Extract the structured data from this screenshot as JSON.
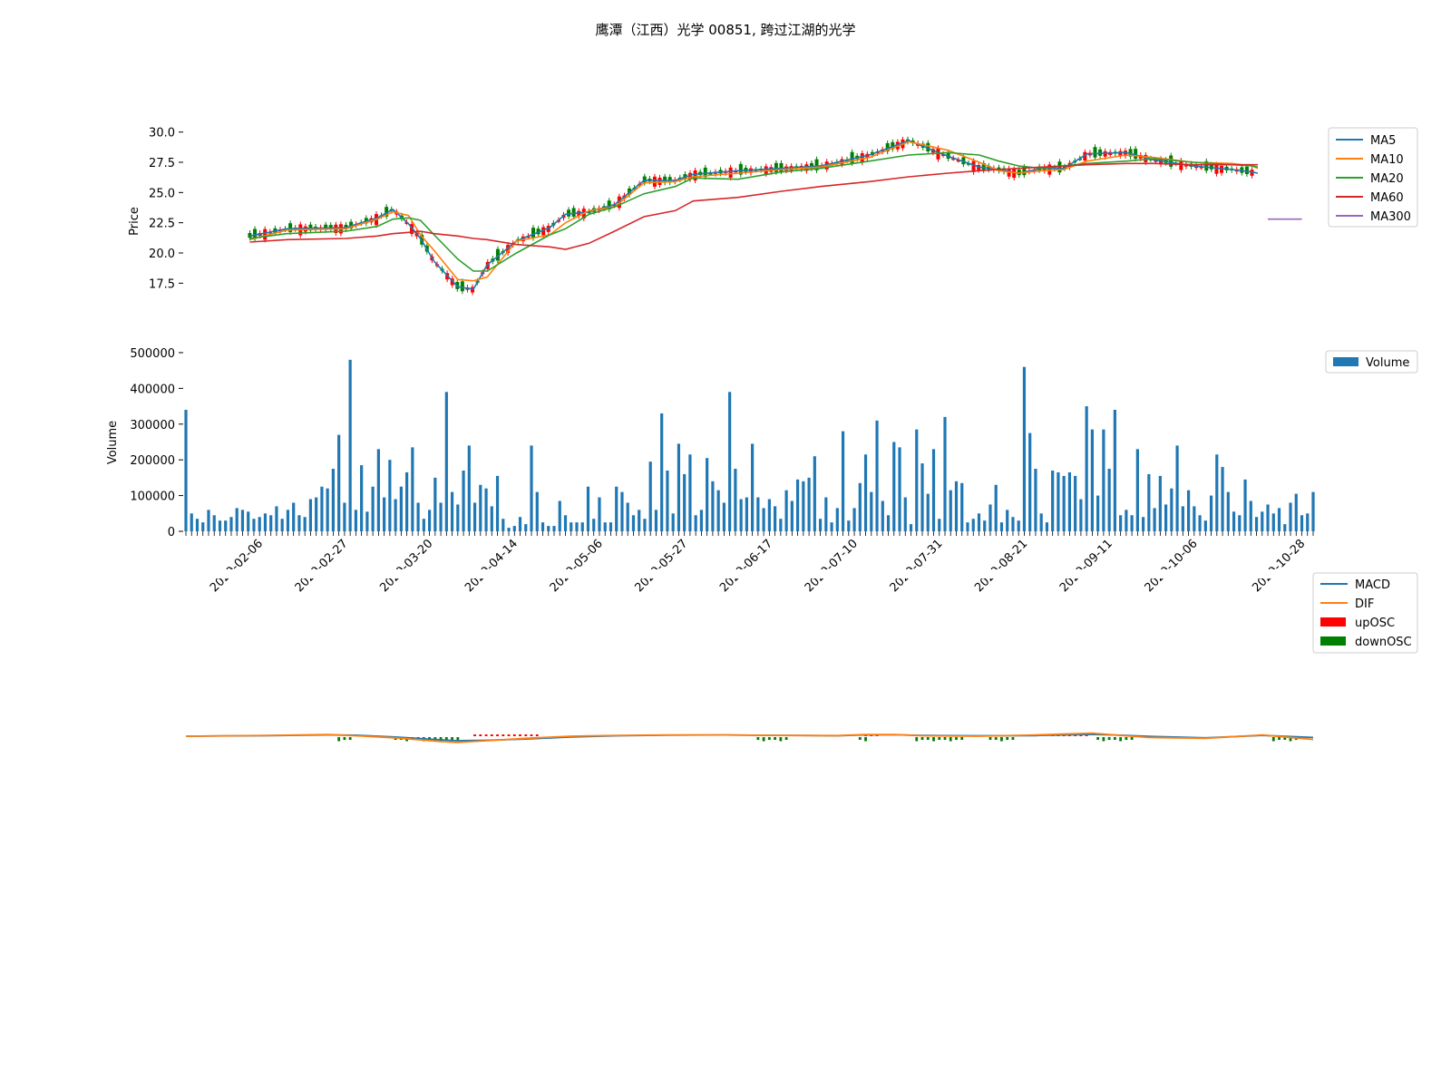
{
  "title": "鹰潭（江西）光学 00851, 跨过江湖的光学",
  "colors": {
    "MA5": "#1f77b4",
    "MA10": "#ff7f0e",
    "MA20": "#2ca02c",
    "MA60": "#d62728",
    "MA300": "#9467bd",
    "up": "#ff0000",
    "down": "#008000",
    "volume": "#1f77b4",
    "MACD": "#1f77b4",
    "DIF": "#ff7f0e"
  },
  "chart_data": [
    {
      "type": "line",
      "ylabel": "Price",
      "ylim": [
        15.5,
        30.5
      ],
      "yticks": [
        "17.5",
        "20.0",
        "22.5",
        "25.0",
        "27.5",
        "30.0"
      ],
      "legend": [
        "MA5",
        "MA10",
        "MA20",
        "MA60",
        "MA300"
      ],
      "legend_position": "top-right",
      "n_days": 199,
      "x": [
        9,
        28,
        58,
        74,
        82,
        90,
        96,
        103,
        115,
        123,
        130,
        145,
        162,
        170,
        182,
        195,
        210,
        226,
        235
      ],
      "series": [
        {
          "name": "MA5",
          "values": [
            21.4,
            22.0,
            22.1,
            22.9,
            23.6,
            22.4,
            21.2,
            19.3,
            17.2,
            17.0,
            19.0,
            21.0,
            22.1,
            23.2,
            23.4,
            24.0,
            26.0,
            26.0,
            26.5
          ]
        },
        {
          "name": "MA10",
          "values": [
            21.1,
            21.9,
            22.0,
            22.8,
            23.4,
            23.1,
            21.5,
            20.2,
            17.8,
            17.7,
            18.0,
            21.0,
            21.5,
            22.5,
            23.5,
            23.8,
            25.8,
            25.9,
            26.3
          ]
        },
        {
          "name": "MA20",
          "values": [
            21.2,
            21.6,
            21.8,
            22.2,
            22.8,
            22.9,
            22.7,
            21.5,
            19.5,
            18.5,
            18.5,
            20.0,
            21.5,
            22.0,
            23.2,
            23.8,
            24.9,
            25.5,
            26.2
          ]
        },
        {
          "name": "MA60",
          "values": [
            20.9,
            21.1,
            21.2,
            21.4,
            21.6,
            21.7,
            21.8,
            21.6,
            21.4,
            21.2,
            21.1,
            20.7,
            20.5,
            20.3,
            20.8,
            21.8,
            23.0,
            23.5,
            24.3
          ]
        }
      ],
      "continuation": {
        "x": [
          258,
          280,
          300,
          325,
          345,
          365,
          381,
          391,
          401,
          413,
          424,
          436,
          456,
          470,
          490,
          510,
          520,
          523
        ],
        "MA5": [
          26.8,
          27.0,
          27.2,
          28.1,
          29.3,
          28.0,
          27.1,
          26.9,
          26.6,
          27.0,
          27.0,
          28.2,
          28.3,
          27.7,
          27.2,
          26.9,
          26.7,
          26.6
        ],
        "MA10": [
          26.6,
          26.9,
          27.1,
          27.9,
          29.2,
          28.5,
          27.5,
          26.8,
          26.6,
          26.8,
          26.9,
          27.6,
          28.1,
          27.9,
          27.5,
          27.4,
          27.2,
          27.0
        ],
        "MA20": [
          26.1,
          26.7,
          27.0,
          27.6,
          28.1,
          28.3,
          28.1,
          27.6,
          27.2,
          27.0,
          27.2,
          27.4,
          27.6,
          27.8,
          27.5,
          27.3,
          27.2,
          27.1
        ],
        "MA60": [
          24.6,
          25.1,
          25.5,
          25.9,
          26.3,
          26.6,
          26.8,
          26.9,
          27.0,
          27.1,
          27.2,
          27.3,
          27.4,
          27.4,
          27.3,
          27.3,
          27.3,
          27.3
        ]
      },
      "ma300_segment": {
        "x": [
          191,
          197
        ],
        "value": 22.8
      }
    },
    {
      "type": "bar",
      "ylabel": "Volume",
      "ylim": [
        0,
        510000
      ],
      "yticks": [
        "0",
        "100000",
        "200000",
        "300000",
        "400000",
        "500000"
      ],
      "legend": [
        "Volume"
      ],
      "legend_position": "top-right",
      "xticklabels": [
        "2020-02-06",
        "2020-02-27",
        "2020-03-20",
        "2020-04-14",
        "2020-05-06",
        "2020-05-27",
        "2020-06-17",
        "2020-07-10",
        "2020-07-31",
        "2020-08-21",
        "2020-09-11",
        "2020-10-06",
        "2020-10-28"
      ],
      "xtick_index": [
        13,
        28,
        43,
        58,
        73,
        88,
        103,
        118,
        133,
        148,
        163,
        178,
        197
      ],
      "values": [
        340000,
        50000,
        35000,
        25000,
        60000,
        45000,
        30000,
        30000,
        40000,
        65000,
        60000,
        55000,
        35000,
        40000,
        50000,
        45000,
        70000,
        35000,
        60000,
        80000,
        45000,
        40000,
        90000,
        95000,
        125000,
        120000,
        175000,
        270000,
        80000,
        480000,
        60000,
        185000,
        55000,
        125000,
        230000,
        95000,
        200000,
        90000,
        125000,
        165000,
        235000,
        80000,
        35000,
        60000,
        150000,
        80000,
        390000,
        110000,
        75000,
        170000,
        240000,
        80000,
        130000,
        120000,
        70000,
        155000,
        35000,
        10000,
        15000,
        40000,
        20000,
        240000,
        110000,
        25000,
        15000,
        15000,
        85000,
        45000,
        25000,
        25000,
        25000,
        125000,
        35000,
        95000,
        25000,
        25000,
        125000,
        110000,
        80000,
        45000,
        60000,
        35000,
        195000,
        60000,
        330000,
        170000,
        50000,
        245000,
        160000,
        215000,
        45000,
        60000,
        205000,
        140000,
        115000,
        80000,
        390000,
        175000,
        90000,
        95000,
        245000,
        95000,
        65000,
        90000,
        70000,
        35000,
        115000,
        85000,
        145000,
        140000,
        150000,
        210000,
        35000,
        95000,
        25000,
        65000,
        280000,
        30000,
        65000,
        135000,
        215000,
        110000,
        310000,
        85000,
        45000,
        250000,
        235000,
        95000,
        20000,
        285000,
        190000,
        105000,
        230000,
        35000,
        320000,
        115000,
        140000,
        135000,
        25000,
        35000,
        50000,
        30000,
        75000,
        130000,
        25000,
        60000,
        40000,
        30000,
        460000,
        275000,
        175000,
        50000,
        25000,
        170000,
        165000,
        155000,
        165000,
        155000,
        90000,
        350000,
        285000,
        100000,
        285000,
        175000,
        340000,
        45000,
        60000,
        45000,
        230000,
        40000,
        160000,
        65000,
        155000,
        75000,
        120000,
        240000,
        70000,
        115000,
        70000,
        45000,
        30000,
        100000,
        215000,
        180000,
        110000,
        55000,
        45000,
        145000,
        85000,
        40000,
        55000,
        75000,
        50000,
        65000,
        20000,
        80000,
        105000,
        45000,
        50000,
        110000
      ]
    },
    {
      "type": "line",
      "legend": [
        "MACD",
        "DIF",
        "upOSC",
        "downOSC"
      ],
      "legend_position": "top-right",
      "x": [
        0,
        15,
        25,
        30,
        37,
        45,
        48,
        53,
        60,
        68,
        76,
        85,
        95,
        105,
        115,
        120,
        125,
        130,
        140,
        150,
        160,
        165,
        170,
        180,
        190,
        199
      ],
      "series": [
        {
          "name": "MACD",
          "values": [
            0.0,
            0.15,
            0.3,
            0.25,
            -0.2,
            -0.9,
            -1.1,
            -1.0,
            -0.7,
            -0.2,
            0.1,
            0.25,
            0.3,
            0.2,
            0.1,
            0.3,
            0.35,
            0.2,
            0.1,
            0.15,
            0.45,
            0.25,
            -0.05,
            -0.4,
            0.2,
            -0.3
          ]
        },
        {
          "name": "DIF",
          "values": [
            0.0,
            0.2,
            0.4,
            0.1,
            -0.4,
            -1.3,
            -1.5,
            -1.1,
            -0.5,
            0.0,
            0.2,
            0.3,
            0.3,
            0.2,
            0.15,
            0.4,
            0.4,
            0.1,
            0.0,
            0.3,
            0.75,
            0.2,
            -0.3,
            -0.5,
            0.3,
            -0.8
          ]
        }
      ],
      "osc_down": [
        [
          27,
          29
        ],
        [
          37,
          48
        ],
        [
          101,
          106
        ],
        [
          119,
          120
        ],
        [
          129,
          137
        ],
        [
          142,
          146
        ],
        [
          161,
          167
        ],
        [
          192,
          196
        ]
      ],
      "osc_up": [
        [
          51,
          62
        ],
        [
          153,
          159
        ],
        [
          120,
          122
        ]
      ]
    }
  ]
}
